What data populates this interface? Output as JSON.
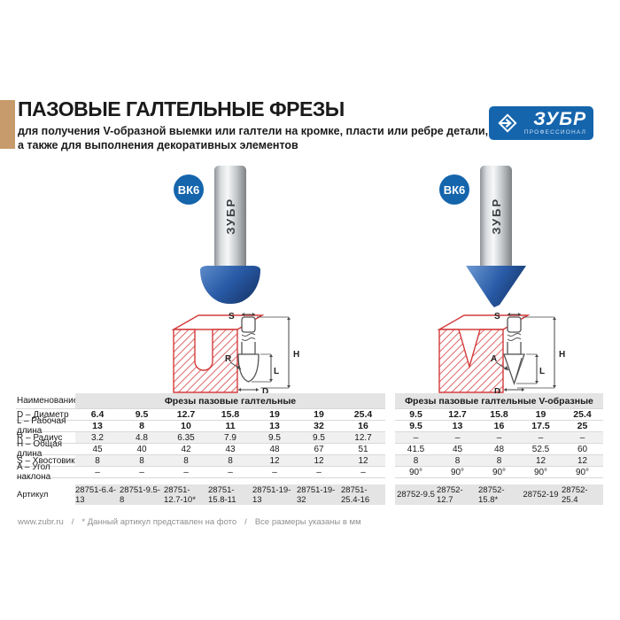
{
  "header": {
    "title": "ПАЗОВЫЕ ГАЛТЕЛЬНЫЕ ФРЕЗЫ",
    "subtitle_line1": "для получения V-образной выемки или галтели на кромке, пласти или ребре детали,",
    "subtitle_line2": "а также для выполнения декоративных элементов",
    "accent_color": "#c79b6b"
  },
  "logo": {
    "brand": "ЗУБР",
    "tagline": "ПРОФЕССИОНАЛ",
    "color": "#1565ad"
  },
  "products": [
    {
      "badge": "ВК6",
      "shank_brand": "ЗУБР",
      "head_type": "cove"
    },
    {
      "badge": "ВК6",
      "shank_brand": "ЗУБР",
      "head_type": "v-groove"
    }
  ],
  "diagrams": [
    {
      "labels": [
        "S",
        "H",
        "R",
        "L",
        "D"
      ],
      "groove": "U"
    },
    {
      "labels": [
        "S",
        "H",
        "A",
        "L",
        "D"
      ],
      "groove": "V"
    }
  ],
  "colors": {
    "brand_blue": "#1565ad",
    "accent_tan": "#c79b6b",
    "diagram_red": "#d43b3b",
    "table_band_gray": "#e4e4e4"
  },
  "table": {
    "name_header": "Наименование",
    "row_labels": [
      "D – Диаметр",
      "L – Рабочая длина",
      "R – Радиус",
      "H – Общая длина",
      "S – Хвостовик",
      "A – Угол наклона"
    ],
    "spec_keys": [
      "d",
      "l",
      "r",
      "h",
      "s",
      "a"
    ],
    "article_label": "Артикул",
    "groups": [
      {
        "title": "Фрезы пазовые галтельные",
        "columns": [
          {
            "d": "6.4",
            "l": "13",
            "r": "3.2",
            "h": "45",
            "s": "8",
            "a": "–",
            "article": "28751-6.4-13"
          },
          {
            "d": "9.5",
            "l": "8",
            "r": "4.8",
            "h": "40",
            "s": "8",
            "a": "–",
            "article": "28751-9.5-8"
          },
          {
            "d": "12.7",
            "l": "10",
            "r": "6.35",
            "h": "42",
            "s": "8",
            "a": "–",
            "article": "28751-12.7-10*"
          },
          {
            "d": "15.8",
            "l": "11",
            "r": "7.9",
            "h": "43",
            "s": "8",
            "a": "–",
            "article": "28751-15.8-11"
          },
          {
            "d": "19",
            "l": "13",
            "r": "9.5",
            "h": "48",
            "s": "12",
            "a": "–",
            "article": "28751-19-13"
          },
          {
            "d": "19",
            "l": "32",
            "r": "9.5",
            "h": "67",
            "s": "12",
            "a": "–",
            "article": "28751-19-32"
          },
          {
            "d": "25.4",
            "l": "16",
            "r": "12.7",
            "h": "51",
            "s": "12",
            "a": "–",
            "article": "28751-25.4-16"
          }
        ]
      },
      {
        "title": "Фрезы пазовые галтельные V-образные",
        "columns": [
          {
            "d": "9.5",
            "l": "9.5",
            "r": "–",
            "h": "41.5",
            "s": "8",
            "a": "90°",
            "article": "28752-9.5"
          },
          {
            "d": "12.7",
            "l": "13",
            "r": "–",
            "h": "45",
            "s": "8",
            "a": "90°",
            "article": "28752-12.7"
          },
          {
            "d": "15.8",
            "l": "16",
            "r": "–",
            "h": "48",
            "s": "8",
            "a": "90°",
            "article": "28752-15.8*"
          },
          {
            "d": "19",
            "l": "17.5",
            "r": "–",
            "h": "52.5",
            "s": "12",
            "a": "90°",
            "article": "28752-19"
          },
          {
            "d": "25.4",
            "l": "25",
            "r": "–",
            "h": "60",
            "s": "12",
            "a": "90°",
            "article": "28752-25.4"
          }
        ]
      }
    ]
  },
  "footer": {
    "website": "www.zubr.ru",
    "separator": "/",
    "note_photo": "* Данный артикул представлен на фото",
    "note_units": "Все размеры указаны в мм"
  }
}
